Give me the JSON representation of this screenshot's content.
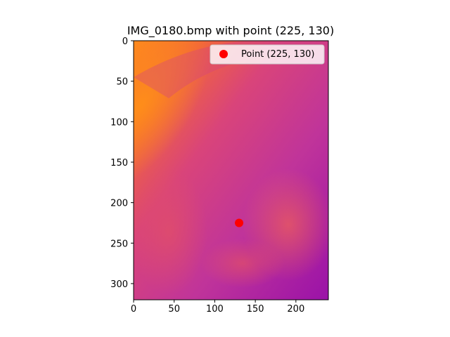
{
  "chart_data": {
    "type": "scatter",
    "title": "IMG_0180.bmp with point (225, 130)",
    "xlabel": "",
    "ylabel": "",
    "xlim": [
      0,
      240
    ],
    "ylim": [
      320,
      0
    ],
    "y_inverted": true,
    "grid": false,
    "legend_position": "top-right",
    "background": "thermal image (plasma colormap), bright orange upper-left edge fading to magenta/purple",
    "xticks": [
      0,
      50,
      100,
      150,
      200
    ],
    "yticks": [
      0,
      50,
      100,
      150,
      200,
      250,
      300
    ],
    "series": [
      {
        "name": "Point (225, 130)",
        "color": "#ff0000",
        "points": [
          {
            "x": 130,
            "y": 225
          }
        ]
      }
    ]
  }
}
